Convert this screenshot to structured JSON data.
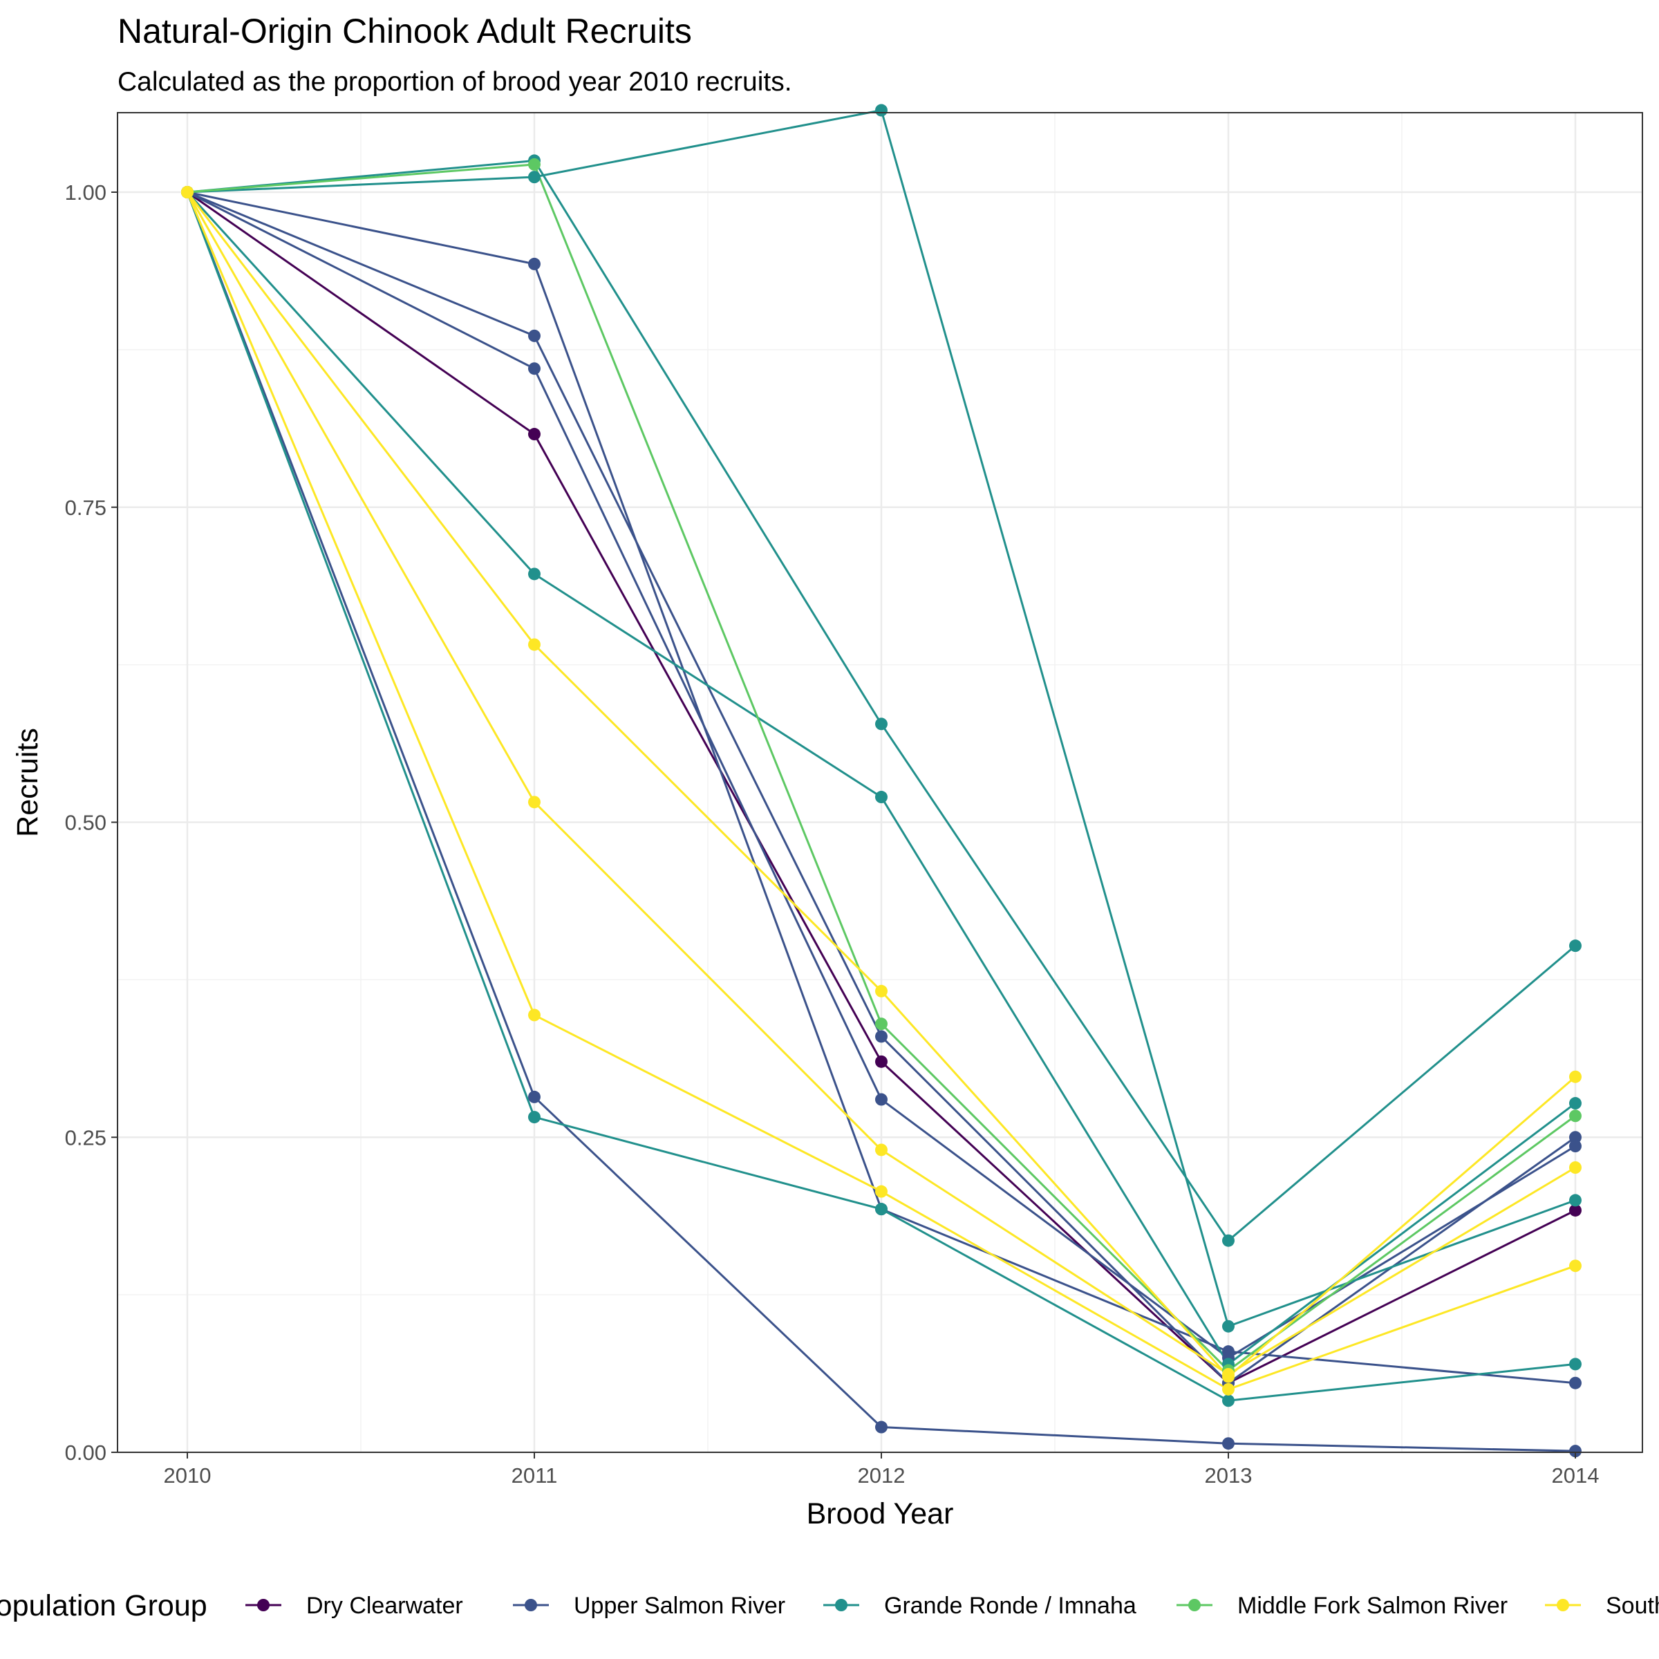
{
  "chart_data": {
    "type": "line",
    "title": "Natural-Origin Chinook Adult Recruits",
    "subtitle": "Calculated as the proportion of brood year 2010 recruits.",
    "xlabel": "Brood Year",
    "ylabel": "Recruits",
    "x": [
      2010,
      2011,
      2012,
      2013,
      2014
    ],
    "x_ticks": [
      "2010",
      "2011",
      "2012",
      "2013",
      "2014"
    ],
    "y_ticks": [
      "0.00",
      "0.25",
      "0.50",
      "0.75",
      "1.00"
    ],
    "ylim": [
      0,
      1.065
    ],
    "grid": true,
    "legend_position": "bottom",
    "legend_title": "Population Group",
    "groups": [
      {
        "name": "Dry Clearwater",
        "color": "#440154"
      },
      {
        "name": "Upper Salmon River",
        "color": "#3B528B"
      },
      {
        "name": "Grande Ronde / Imnaha",
        "color": "#21908C"
      },
      {
        "name": "Middle Fork Salmon River",
        "color": "#5DC863"
      },
      {
        "name": "South Fork Salmon River",
        "color": "#FDE725"
      }
    ],
    "series": [
      {
        "group": "Dry Clearwater",
        "values": [
          1.0,
          0.808,
          0.31,
          0.055,
          0.192
        ]
      },
      {
        "group": "Upper Salmon River",
        "values": [
          1.0,
          0.943,
          0.193,
          0.08,
          0.055
        ]
      },
      {
        "group": "Upper Salmon River",
        "values": [
          1.0,
          0.886,
          0.33,
          0.055,
          0.25
        ]
      },
      {
        "group": "Upper Salmon River",
        "values": [
          1.0,
          0.86,
          0.28,
          0.075,
          0.243
        ]
      },
      {
        "group": "Upper Salmon River",
        "values": [
          1.0,
          0.282,
          0.02,
          0.007,
          0.001
        ]
      },
      {
        "group": "Grande Ronde / Imnaha",
        "values": [
          1.0,
          1.025,
          0.578,
          0.168,
          0.402
        ]
      },
      {
        "group": "Grande Ronde / Imnaha",
        "values": [
          1.0,
          1.012,
          1.065,
          0.1,
          0.2
        ]
      },
      {
        "group": "Grande Ronde / Imnaha",
        "values": [
          1.0,
          0.697,
          0.52,
          0.07,
          0.277
        ]
      },
      {
        "group": "Grande Ronde / Imnaha",
        "values": [
          1.0,
          0.266,
          0.193,
          0.041,
          0.07
        ]
      },
      {
        "group": "Middle Fork Salmon River",
        "values": [
          1.0,
          1.022,
          0.34,
          0.065,
          0.267
        ]
      },
      {
        "group": "South Fork Salmon River",
        "values": [
          1.0,
          0.641,
          0.366,
          0.06,
          0.298
        ]
      },
      {
        "group": "South Fork Salmon River",
        "values": [
          1.0,
          0.516,
          0.24,
          0.062,
          0.226
        ]
      },
      {
        "group": "South Fork Salmon River",
        "values": [
          1.0,
          0.347,
          0.207,
          0.05,
          0.148
        ]
      }
    ]
  }
}
